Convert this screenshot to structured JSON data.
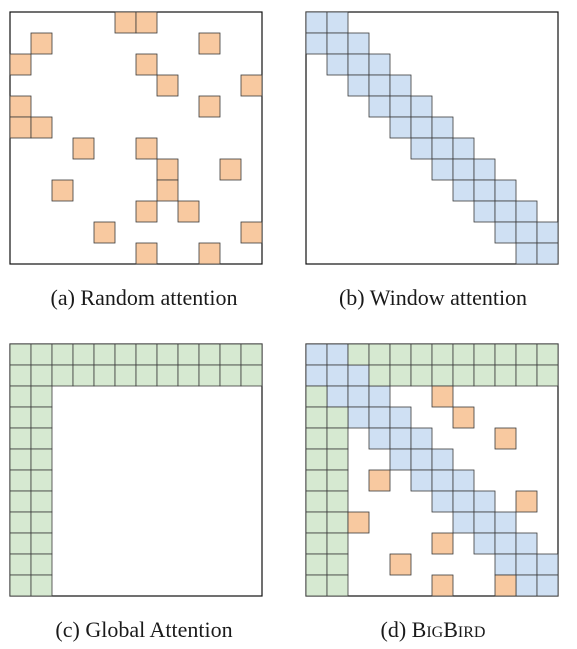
{
  "grid_size": 12,
  "colors": {
    "random": "#f8c9a0",
    "window": "#cfe0f3",
    "global": "#d6e9d1",
    "cell_stroke": "#3a3a3a",
    "frame_stroke": "#111111"
  },
  "panels": [
    {
      "id": "random",
      "caption": "(a) Random attention",
      "cells": [
        [
          0,
          5
        ],
        [
          0,
          6
        ],
        [
          1,
          1
        ],
        [
          1,
          9
        ],
        [
          2,
          0
        ],
        [
          2,
          6
        ],
        [
          3,
          7
        ],
        [
          3,
          11
        ],
        [
          4,
          0
        ],
        [
          4,
          9
        ],
        [
          5,
          0
        ],
        [
          5,
          1
        ],
        [
          6,
          3
        ],
        [
          6,
          6
        ],
        [
          7,
          7
        ],
        [
          7,
          10
        ],
        [
          8,
          2
        ],
        [
          8,
          7
        ],
        [
          9,
          6
        ],
        [
          9,
          8
        ],
        [
          10,
          4
        ],
        [
          10,
          11
        ],
        [
          11,
          6
        ],
        [
          11,
          9
        ]
      ]
    },
    {
      "id": "window",
      "caption": "(b) Window attention",
      "window_width": 3
    },
    {
      "id": "global",
      "caption": "(c) Global Attention",
      "global_tokens": 2
    },
    {
      "id": "bigbird",
      "caption_prefix": "(d) ",
      "caption_big_b": "B",
      "caption_small_ig": "IG",
      "caption_big_b2": "B",
      "caption_small_ird": "IRD",
      "global_tokens": 2,
      "window_width": 3,
      "random_cells": [
        [
          2,
          6
        ],
        [
          3,
          7
        ],
        [
          4,
          9
        ],
        [
          6,
          3
        ],
        [
          7,
          10
        ],
        [
          8,
          2
        ],
        [
          9,
          6
        ],
        [
          10,
          4
        ],
        [
          11,
          6
        ],
        [
          11,
          9
        ]
      ]
    }
  ]
}
